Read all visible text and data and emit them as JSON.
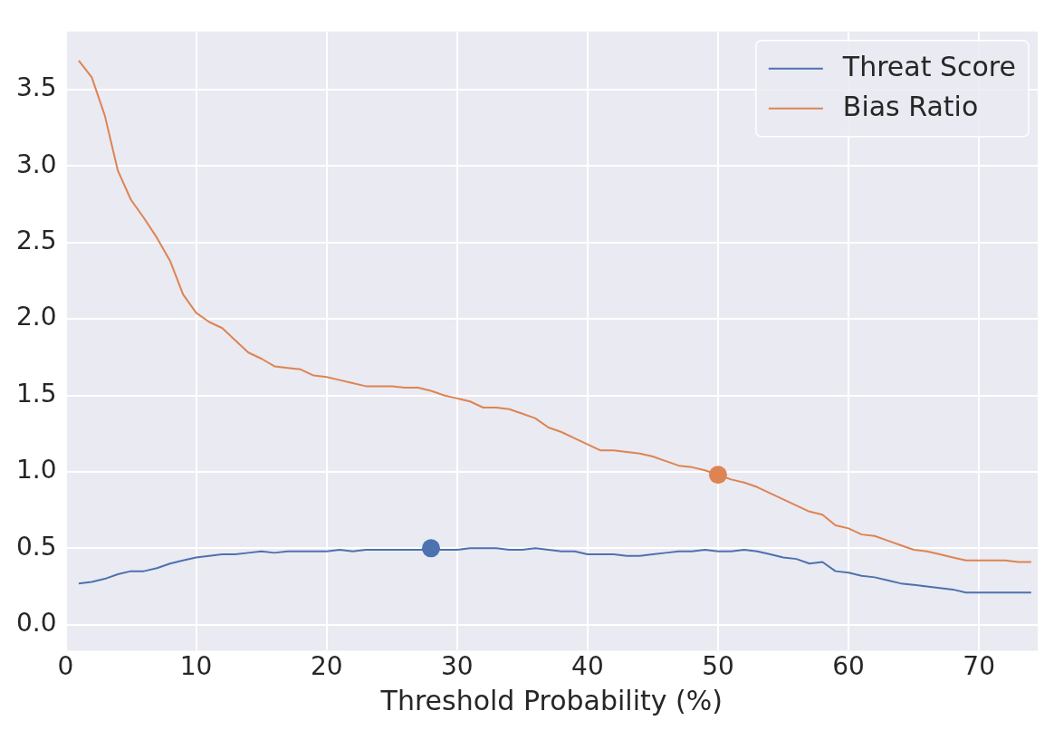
{
  "chart_data": {
    "type": "line",
    "xlabel": "Threshold Probability (%)",
    "xlim": [
      0,
      74.5
    ],
    "ylim": [
      -0.17,
      3.88
    ],
    "xticks": [
      0,
      10,
      20,
      30,
      40,
      50,
      60,
      70
    ],
    "yticks": [
      {
        "value": 0,
        "label": "0.0"
      },
      {
        "value": 0.5,
        "label": "0.5"
      },
      {
        "value": 1,
        "label": "1.0"
      },
      {
        "value": 1.5,
        "label": "1.5"
      },
      {
        "value": 2,
        "label": "2.0"
      },
      {
        "value": 2.5,
        "label": "2.5"
      },
      {
        "value": 3,
        "label": "3.0"
      },
      {
        "value": 3.5,
        "label": "3.5"
      }
    ],
    "grid": true,
    "legend": "top right",
    "marker": "none",
    "line_style": "solid",
    "x": [
      1,
      2,
      3,
      4,
      5,
      6,
      7,
      8,
      9,
      10,
      11,
      12,
      13,
      14,
      15,
      16,
      17,
      18,
      19,
      20,
      21,
      22,
      23,
      24,
      25,
      26,
      27,
      28,
      29,
      30,
      31,
      32,
      33,
      34,
      35,
      36,
      37,
      38,
      39,
      40,
      41,
      42,
      43,
      44,
      45,
      46,
      47,
      48,
      49,
      50,
      51,
      52,
      53,
      54,
      55,
      56,
      57,
      58,
      59,
      60,
      61,
      62,
      63,
      64,
      65,
      66,
      67,
      68,
      69,
      70,
      71,
      72,
      73,
      74
    ],
    "series": [
      {
        "name": "Threat Score",
        "color": "#4c72b0",
        "values": [
          0.27,
          0.28,
          0.3,
          0.33,
          0.35,
          0.35,
          0.37,
          0.4,
          0.42,
          0.44,
          0.45,
          0.46,
          0.46,
          0.47,
          0.48,
          0.47,
          0.48,
          0.48,
          0.48,
          0.48,
          0.49,
          0.48,
          0.49,
          0.49,
          0.49,
          0.49,
          0.49,
          0.49,
          0.49,
          0.49,
          0.5,
          0.5,
          0.5,
          0.49,
          0.49,
          0.5,
          0.49,
          0.48,
          0.48,
          0.46,
          0.46,
          0.46,
          0.45,
          0.45,
          0.46,
          0.47,
          0.48,
          0.48,
          0.49,
          0.48,
          0.48,
          0.49,
          0.48,
          0.46,
          0.44,
          0.43,
          0.4,
          0.41,
          0.35,
          0.34,
          0.32,
          0.31,
          0.29,
          0.27,
          0.26,
          0.25,
          0.24,
          0.23,
          0.21,
          0.21,
          0.21,
          0.21,
          0.21,
          0.21
        ]
      },
      {
        "name": "Bias Ratio",
        "color": "#dd8452",
        "values": [
          3.69,
          3.58,
          3.33,
          2.97,
          2.78,
          2.66,
          2.53,
          2.38,
          2.16,
          2.04,
          1.98,
          1.94,
          1.86,
          1.78,
          1.74,
          1.69,
          1.68,
          1.67,
          1.63,
          1.62,
          1.6,
          1.58,
          1.56,
          1.56,
          1.56,
          1.55,
          1.55,
          1.53,
          1.5,
          1.48,
          1.46,
          1.42,
          1.42,
          1.41,
          1.38,
          1.35,
          1.29,
          1.26,
          1.22,
          1.18,
          1.14,
          1.14,
          1.13,
          1.12,
          1.1,
          1.07,
          1.04,
          1.03,
          1.01,
          0.98,
          0.95,
          0.93,
          0.9,
          0.86,
          0.82,
          0.78,
          0.74,
          0.72,
          0.65,
          0.63,
          0.59,
          0.58,
          0.55,
          0.52,
          0.49,
          0.48,
          0.46,
          0.44,
          0.42,
          0.42,
          0.42,
          0.42,
          0.41,
          0.41
        ]
      },
      {
        "type": "scatter",
        "marker": "circle",
        "color": "#4c72b0",
        "x": [
          28
        ],
        "values": [
          0.5
        ]
      },
      {
        "type": "scatter",
        "marker": "circle",
        "color": "#dd8452",
        "x": [
          50
        ],
        "values": [
          0.98
        ]
      }
    ]
  }
}
